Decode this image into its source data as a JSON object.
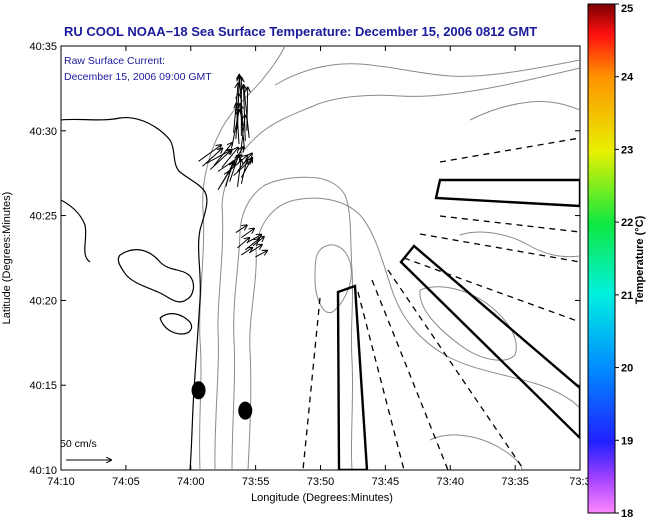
{
  "chart_data": {
    "type": "map",
    "title": "RU COOL  NOAA−18  Sea Surface Temperature:  December 15, 2006 0812 GMT",
    "annotation_lines": [
      "Raw Surface Current:",
      "December 15, 2006 09:00 GMT"
    ],
    "xlabel": "Longitude (Degrees:Minutes)",
    "ylabel": "Latitude (Degrees:Minutes)",
    "x_range_deg": [
      -74.1667,
      -73.5
    ],
    "y_range_deg": [
      40.1667,
      40.5833
    ],
    "x_ticks": [
      {
        "value": -74.1667,
        "label": "74:10"
      },
      {
        "value": -74.0833,
        "label": "74:05"
      },
      {
        "value": -74.0,
        "label": "74:00"
      },
      {
        "value": -73.9167,
        "label": "73:55"
      },
      {
        "value": -73.8333,
        "label": "73:50"
      },
      {
        "value": -73.75,
        "label": "73:45"
      },
      {
        "value": -73.6667,
        "label": "73:40"
      },
      {
        "value": -73.5833,
        "label": "73:35"
      },
      {
        "value": -73.5,
        "label": "73:3"
      }
    ],
    "y_ticks": [
      {
        "value": 40.5833,
        "label": "40:35"
      },
      {
        "value": 40.5,
        "label": "40:30"
      },
      {
        "value": 40.4167,
        "label": "40:25"
      },
      {
        "value": 40.3333,
        "label": "40:20"
      },
      {
        "value": 40.25,
        "label": "40:15"
      },
      {
        "value": 40.1667,
        "label": "40:10"
      }
    ],
    "colorbar": {
      "label": "Temperature (°C)",
      "min": 18,
      "max": 25,
      "ticks": [
        "25",
        "24",
        "23",
        "22",
        "21",
        "20",
        "19",
        "18"
      ]
    },
    "scale_vector_label": "50 cm/s",
    "current_vectors": [
      {
        "lon": -73.945,
        "lat": 40.498,
        "u": 5,
        "v": 55
      },
      {
        "lon": -73.94,
        "lat": 40.502,
        "u": 2,
        "v": 60
      },
      {
        "lon": -73.935,
        "lat": 40.495,
        "u": 0,
        "v": 65
      },
      {
        "lon": -73.93,
        "lat": 40.49,
        "u": -2,
        "v": 62
      },
      {
        "lon": -73.942,
        "lat": 40.492,
        "u": 3,
        "v": 50
      },
      {
        "lon": -73.933,
        "lat": 40.505,
        "u": -4,
        "v": 55
      },
      {
        "lon": -73.938,
        "lat": 40.487,
        "u": -3,
        "v": 45
      },
      {
        "lon": -73.928,
        "lat": 40.5,
        "u": 1,
        "v": 48
      },
      {
        "lon": -73.936,
        "lat": 40.478,
        "u": 5,
        "v": 42
      },
      {
        "lon": -73.947,
        "lat": 40.485,
        "u": 8,
        "v": 40
      },
      {
        "lon": -73.931,
        "lat": 40.482,
        "u": -5,
        "v": 50
      },
      {
        "lon": -73.925,
        "lat": 40.493,
        "u": -6,
        "v": 58
      },
      {
        "lon": -73.99,
        "lat": 40.47,
        "u": 25,
        "v": 18
      },
      {
        "lon": -73.985,
        "lat": 40.465,
        "u": 22,
        "v": 20
      },
      {
        "lon": -73.98,
        "lat": 40.468,
        "u": 28,
        "v": 15
      },
      {
        "lon": -73.975,
        "lat": 40.462,
        "u": 24,
        "v": 22
      },
      {
        "lon": -73.97,
        "lat": 40.466,
        "u": 20,
        "v": 25
      },
      {
        "lon": -73.965,
        "lat": 40.46,
        "u": 26,
        "v": 18
      },
      {
        "lon": -73.96,
        "lat": 40.464,
        "u": 18,
        "v": 22
      },
      {
        "lon": -73.955,
        "lat": 40.458,
        "u": 24,
        "v": 20
      },
      {
        "lon": -73.95,
        "lat": 40.462,
        "u": 15,
        "v": 25
      },
      {
        "lon": -73.945,
        "lat": 40.456,
        "u": 20,
        "v": 18
      },
      {
        "lon": -73.94,
        "lat": 40.46,
        "u": 16,
        "v": 20
      },
      {
        "lon": -73.935,
        "lat": 40.454,
        "u": 12,
        "v": 22
      },
      {
        "lon": -73.95,
        "lat": 40.45,
        "u": 10,
        "v": 30
      },
      {
        "lon": -73.955,
        "lat": 40.445,
        "u": 8,
        "v": 28
      },
      {
        "lon": -73.96,
        "lat": 40.448,
        "u": 14,
        "v": 24
      },
      {
        "lon": -73.965,
        "lat": 40.442,
        "u": 12,
        "v": 20
      },
      {
        "lon": -73.94,
        "lat": 40.445,
        "u": 4,
        "v": 30
      },
      {
        "lon": -73.935,
        "lat": 40.448,
        "u": 6,
        "v": 26
      },
      {
        "lon": -73.942,
        "lat": 40.4,
        "u": 12,
        "v": 8
      },
      {
        "lon": -73.935,
        "lat": 40.395,
        "u": 14,
        "v": 10
      },
      {
        "lon": -73.928,
        "lat": 40.39,
        "u": 16,
        "v": 9
      },
      {
        "lon": -73.94,
        "lat": 40.385,
        "u": 13,
        "v": 11
      },
      {
        "lon": -73.93,
        "lat": 40.383,
        "u": 15,
        "v": 12
      },
      {
        "lon": -73.92,
        "lat": 40.387,
        "u": 12,
        "v": 10
      },
      {
        "lon": -73.925,
        "lat": 40.38,
        "u": 14,
        "v": 9
      },
      {
        "lon": -73.935,
        "lat": 40.378,
        "u": 12,
        "v": 8
      },
      {
        "lon": -73.917,
        "lat": 40.376,
        "u": 13,
        "v": 7
      }
    ],
    "station_markers": [
      {
        "lon": -73.99,
        "lat": 40.245
      },
      {
        "lon": -73.93,
        "lat": 40.225
      }
    ]
  }
}
